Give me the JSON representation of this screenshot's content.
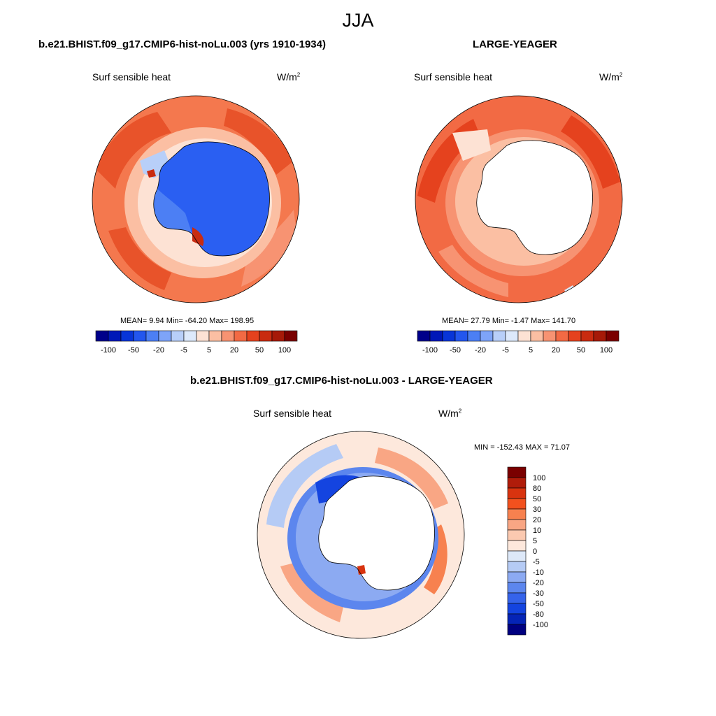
{
  "season": "JJA",
  "panels": [
    {
      "id": "model",
      "title": "b.e21.BHIST.f09_g17.CMIP6-hist-noLu.003 (yrs 1910-1934)",
      "variable": "Surf sensible heat",
      "units_base": "W/m",
      "units_sup": "2",
      "stats": "MEAN=   9.94  Min= -64.20  Max= 198.95",
      "land_fill": "#2a5ff2"
    },
    {
      "id": "obs",
      "title": "LARGE-YEAGER",
      "variable": "Surf sensible heat",
      "units_base": "W/m",
      "units_sup": "2",
      "stats": "MEAN=  27.79  Min=  -1.47  Max= 141.70",
      "land_fill": "#ffffff"
    }
  ],
  "colorbar_top": {
    "colors": [
      "#00008a",
      "#0018b8",
      "#0835d8",
      "#2356ee",
      "#4c7ff4",
      "#7ea4f8",
      "#b8cff9",
      "#dde9fb",
      "#fde2d4",
      "#fbbfa3",
      "#f79372",
      "#f26a44",
      "#e5421e",
      "#c92b10",
      "#a61a08",
      "#7a0000"
    ],
    "tick_labels": [
      "-100",
      "-50",
      "-20",
      "-5",
      "5",
      "20",
      "50",
      "100"
    ]
  },
  "diff_panel": {
    "title": "b.e21.BHIST.f09_g17.CMIP6-hist-noLu.003 - LARGE-YEAGER",
    "variable": "Surf sensible heat",
    "units_base": "W/m",
    "units_sup": "2",
    "minmax": "MIN = -152.43 MAX =  71.07"
  },
  "colorbar_diff": {
    "colors": [
      "#7a0000",
      "#b01c0a",
      "#d8330f",
      "#f2511e",
      "#f7814f",
      "#f9a684",
      "#fbc9b0",
      "#fde8dc",
      "#dde8f8",
      "#b5cbf5",
      "#8caaf2",
      "#5c86ee",
      "#3563ea",
      "#1444e0",
      "#0524b6",
      "#000080"
    ],
    "tick_labels": [
      "100",
      "80",
      "50",
      "30",
      "20",
      "10",
      "5",
      "0",
      "-5",
      "-10",
      "-20",
      "-30",
      "-50",
      "-80",
      "-100"
    ]
  }
}
